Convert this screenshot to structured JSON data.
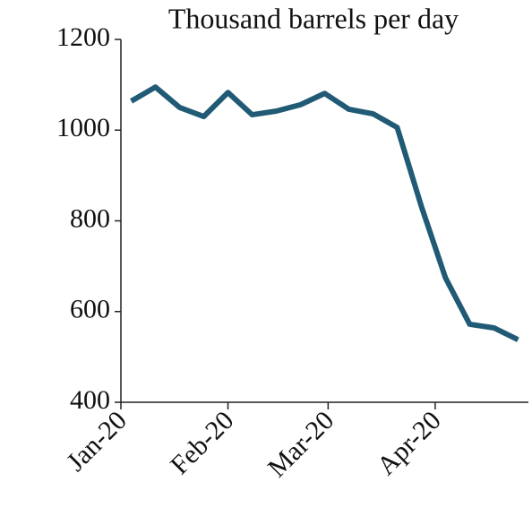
{
  "chart_data": {
    "type": "line",
    "title": "Thousand barrels per day",
    "x": [
      3,
      10,
      17,
      24,
      31,
      38,
      45,
      52,
      59,
      66,
      73,
      80,
      87,
      94,
      101,
      108,
      115
    ],
    "series": [
      {
        "color": "#205a74",
        "values": [
          1064,
          1095,
          1050,
          1030,
          1083,
          1034,
          1042,
          1056,
          1081,
          1046,
          1036,
          1006,
          832,
          674,
          572,
          564,
          538
        ]
      }
    ],
    "xlim": [
      0,
      118
    ],
    "xticks": [
      {
        "value": 0,
        "label": "Jan-20"
      },
      {
        "value": 31,
        "label": "Feb-20"
      },
      {
        "value": 60,
        "label": "Mar-20"
      },
      {
        "value": 91,
        "label": "Apr-20"
      }
    ],
    "ylim": [
      400,
      1200
    ],
    "yticks": [
      400,
      600,
      800,
      1000,
      1200
    ]
  }
}
